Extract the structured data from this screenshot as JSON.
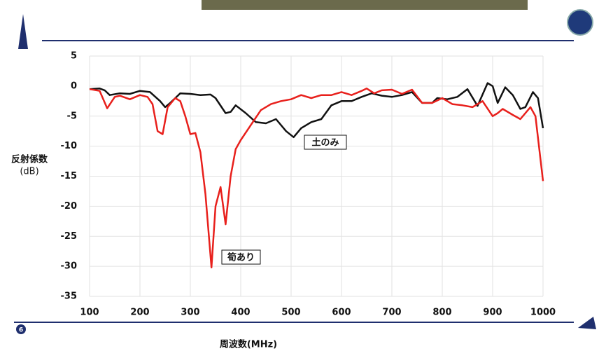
{
  "page_number": "6",
  "chart_data": {
    "type": "line",
    "ylabel": [
      "反射係数",
      "(dB)"
    ],
    "xlabel": "周波数(MHz)",
    "xlim": [
      100,
      1000
    ],
    "xticks": [
      100,
      200,
      300,
      400,
      500,
      600,
      700,
      800,
      900,
      1000
    ],
    "ylim": [
      -35,
      5
    ],
    "yticks": [
      5,
      0,
      -5,
      -10,
      -15,
      -20,
      -25,
      -30,
      -35
    ],
    "grid": true,
    "series": [
      {
        "name": "土のみ",
        "color": "#111111",
        "x": [
          100,
          120,
          130,
          140,
          160,
          180,
          200,
          220,
          240,
          250,
          260,
          280,
          300,
          320,
          340,
          350,
          370,
          380,
          390,
          410,
          430,
          450,
          470,
          490,
          505,
          520,
          540,
          560,
          580,
          600,
          620,
          640,
          660,
          680,
          700,
          720,
          740,
          760,
          780,
          790,
          810,
          830,
          850,
          870,
          890,
          900,
          910,
          925,
          940,
          955,
          965,
          980,
          990,
          1000
        ],
        "values": [
          -0.5,
          -0.4,
          -0.7,
          -1.5,
          -1.2,
          -1.3,
          -0.8,
          -1.0,
          -2.5,
          -3.5,
          -2.8,
          -1.2,
          -1.3,
          -1.5,
          -1.4,
          -2.0,
          -4.5,
          -4.3,
          -3.2,
          -4.5,
          -6.0,
          -6.2,
          -5.5,
          -7.5,
          -8.5,
          -7.0,
          -6.0,
          -5.5,
          -3.2,
          -2.5,
          -2.5,
          -1.8,
          -1.2,
          -1.6,
          -1.8,
          -1.5,
          -1.0,
          -2.8,
          -2.8,
          -2.0,
          -2.2,
          -1.8,
          -0.5,
          -3.3,
          0.5,
          0.0,
          -2.8,
          -0.2,
          -1.5,
          -3.8,
          -3.5,
          -1.0,
          -2.0,
          -7.0
        ]
      },
      {
        "name": "筍あり",
        "color": "#e8201c",
        "x": [
          100,
          120,
          135,
          150,
          160,
          180,
          200,
          215,
          225,
          235,
          245,
          255,
          270,
          280,
          290,
          300,
          310,
          320,
          330,
          342,
          350,
          360,
          370,
          380,
          390,
          400,
          420,
          440,
          460,
          480,
          500,
          520,
          540,
          560,
          580,
          600,
          620,
          640,
          650,
          665,
          680,
          700,
          720,
          740,
          760,
          780,
          800,
          820,
          840,
          860,
          880,
          900,
          910,
          920,
          940,
          955,
          975,
          985,
          1000
        ],
        "values": [
          -0.5,
          -0.8,
          -3.7,
          -1.8,
          -1.6,
          -2.2,
          -1.5,
          -1.8,
          -3.0,
          -7.5,
          -8.0,
          -3.5,
          -2.0,
          -2.5,
          -5.0,
          -8.0,
          -7.8,
          -11.0,
          -18.0,
          -30.2,
          -20.0,
          -16.8,
          -23.0,
          -15.0,
          -10.5,
          -9.0,
          -6.5,
          -4.0,
          -3.0,
          -2.5,
          -2.2,
          -1.5,
          -2.0,
          -1.5,
          -1.5,
          -1.0,
          -1.5,
          -0.8,
          -0.4,
          -1.2,
          -0.7,
          -0.6,
          -1.3,
          -0.6,
          -2.8,
          -2.8,
          -2.0,
          -3.0,
          -3.2,
          -3.5,
          -2.5,
          -5.0,
          -4.5,
          -3.8,
          -4.8,
          -5.5,
          -3.5,
          -5.0,
          -15.8
        ]
      }
    ]
  }
}
